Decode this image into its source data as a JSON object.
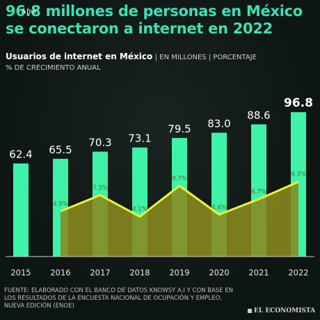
{
  "overlay_tag": "After",
  "headline": "96.8 millones de personas en México se conectaron a internet en 2022",
  "subtitle": {
    "title": "Usuarios de internet en México",
    "unit": "| EN MILLONES | PORCENTAJE",
    "line2": "% DE CRECIMIENTO ANUAL"
  },
  "footer": {
    "source": "FUENTE: ELABORADO CON EL BANCO DE DATOS KNOWSY A.I Y CON BASE EN LOS RESULTADOS DE LA ENCUESTA NACIONAL DE OCUPACIÓN Y EMPLEO, NUEVA EDICIÓN (ENOE)",
    "brand": "EL ECONOMISTA"
  },
  "colors": {
    "bar": "#3ef2a8",
    "area": "#8a8a1e",
    "line": "#e8f53a",
    "headline": "#3de0b4"
  },
  "chart_data": {
    "type": "bar",
    "categories": [
      "2015",
      "2016",
      "2017",
      "2018",
      "2019",
      "2020",
      "2021",
      "2022"
    ],
    "series": [
      {
        "values": [
          62.4,
          65.5,
          70.3,
          73.1,
          79.5,
          83.0,
          88.6,
          96.8
        ],
        "labels": [
          "62.4",
          "65.5",
          "70.3",
          "73.1",
          "79.5",
          "83.0",
          "88.6",
          "96.8"
        ]
      },
      {
        "type": "area",
        "x": [
          "2016",
          "2017",
          "2018",
          "2019",
          "2020",
          "2021",
          "2022"
        ],
        "values": [
          4.9,
          7.3,
          4.1,
          8.7,
          4.4,
          6.7,
          9.3
        ],
        "labels": [
          "4.9%",
          "7.3%",
          "4.1%",
          "8.7%",
          "4.4%",
          "6.7%",
          "9.3%"
        ]
      }
    ],
    "ylim": [
      0,
      100
    ],
    "ylim_secondary": [
      0,
      20
    ],
    "grid": false
  }
}
